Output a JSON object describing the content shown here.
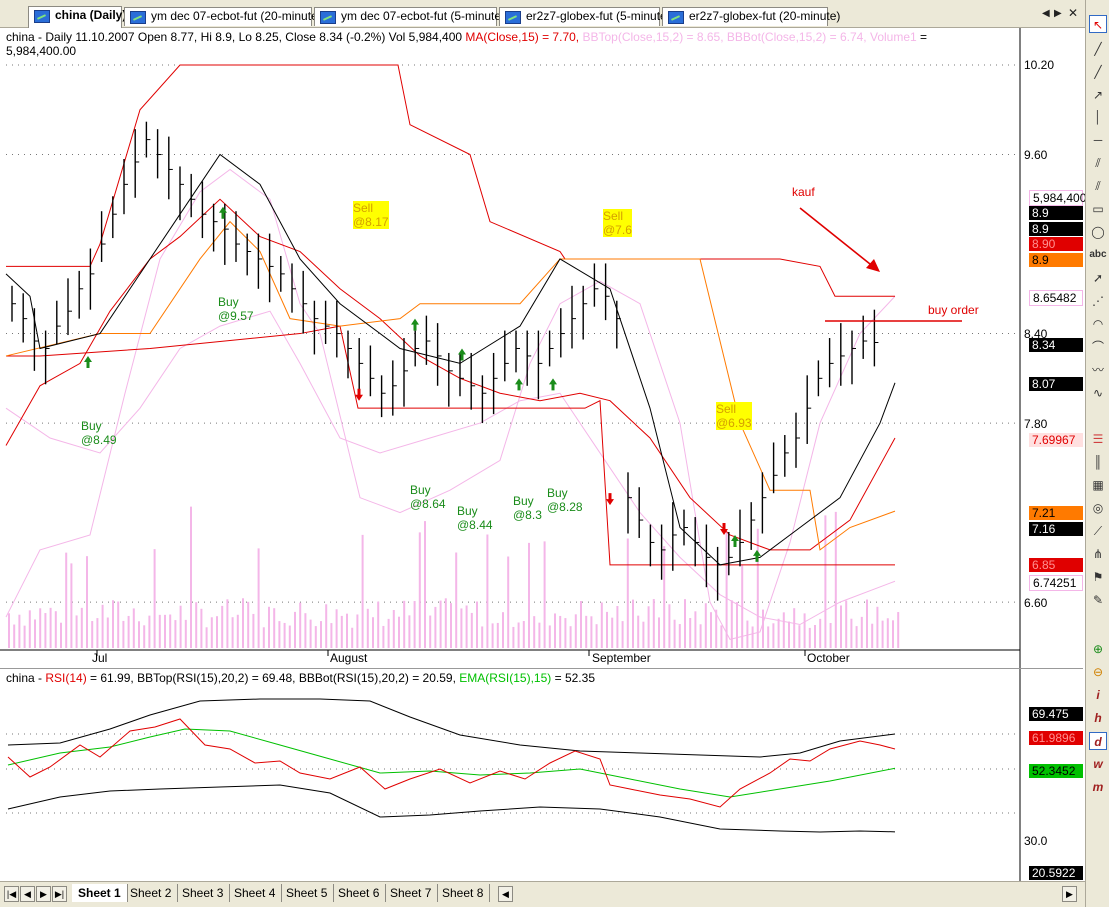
{
  "tabs": [
    {
      "label": "china (Daily)",
      "active": true
    },
    {
      "label": "ym    dec 07-ecbot-fut (20-minute)"
    },
    {
      "label": "ym    dec 07-ecbot-fut (5-minute)"
    },
    {
      "label": "er2z7-globex-fut (5-minute)"
    },
    {
      "label": "er2z7-globex-fut (20-minute)"
    }
  ],
  "price_pane": {
    "header_line1_black": "china - Daily 11.10.2007 Open 8.77, Hi 8.9, Lo 8.25, Close 8.34 (-0.2%) Vol 5,984,400 ",
    "header_ma": "MA(Close,15) = 7.70, ",
    "header_bbtop": "BBTop(Close,15,2) = 8.65, ",
    "header_bbbot": "BBBot(Close,15,2) = 6.74, ",
    "header_vol": "Volume1",
    "header_eq": " =",
    "header_line2": "5,984,400.00",
    "axis_ticks": [
      "10.20",
      "9.60",
      "8.40",
      "7.80",
      "6.60"
    ],
    "price_labels": [
      {
        "text": "5,984,400",
        "bg": "#ffffff",
        "fg": "#000000",
        "border": "#f4b6e8"
      },
      {
        "text": "8.9",
        "bg": "#000000",
        "fg": "#ffffff"
      },
      {
        "text": "8.9",
        "bg": "#000000",
        "fg": "#ffffff"
      },
      {
        "text": "8.90",
        "bg": "#e00000",
        "fg": "#ff9090"
      },
      {
        "text": "8.9",
        "bg": "#ff7a00",
        "fg": "#000000"
      },
      {
        "text": "8.65482",
        "bg": "#ffffff",
        "fg": "#000000",
        "border": "#f4b6e8"
      },
      {
        "text": "8.34",
        "bg": "#000000",
        "fg": "#ffffff"
      },
      {
        "text": "8.07",
        "bg": "#000000",
        "fg": "#ffffff"
      },
      {
        "text": "7.69967",
        "bg": "#ffe0e0",
        "fg": "#e00000"
      },
      {
        "text": "7.21",
        "bg": "#ff7a00",
        "fg": "#000000"
      },
      {
        "text": "7.16",
        "bg": "#000000",
        "fg": "#ffffff"
      },
      {
        "text": "6.85",
        "bg": "#e00000",
        "fg": "#ff9090"
      },
      {
        "text": "6.74251",
        "bg": "#ffffff",
        "fg": "#000000",
        "border": "#f4b6e8"
      }
    ],
    "months": [
      "Jul",
      "August",
      "September",
      "October"
    ],
    "annotations": {
      "kauf": "kauf",
      "buy_order": "buy order"
    },
    "signals": [
      {
        "kind": "buy",
        "l1": "Buy",
        "l2": "@8.49"
      },
      {
        "kind": "buy",
        "l1": "Buy",
        "l2": "@9.57"
      },
      {
        "kind": "sell",
        "l1": "Sell",
        "l2": "@8.17"
      },
      {
        "kind": "buy",
        "l1": "Buy",
        "l2": "@8.64"
      },
      {
        "kind": "buy",
        "l1": "Buy",
        "l2": "@8.44"
      },
      {
        "kind": "buy",
        "l1": "Buy",
        "l2": "@8.3"
      },
      {
        "kind": "buy",
        "l1": "Buy",
        "l2": "@8.28"
      },
      {
        "kind": "sell",
        "l1": "Sell",
        "l2": "@7.6"
      },
      {
        "kind": "sell",
        "l1": "Sell",
        "l2": "@6.93"
      }
    ]
  },
  "rsi_pane": {
    "header_prefix": "china - ",
    "header_rsi": "RSI(14)",
    "header_rest": " = 61.99, BBTop(RSI(15),20,2) = 69.48, BBBot(RSI(15),20,2) = 20.59, ",
    "header_ema": "EMA(RSI(15),15)",
    "header_ema_val": " = 52.35",
    "axis_ticks": [
      "30.0"
    ],
    "labels": [
      {
        "text": "69.475",
        "bg": "#000000",
        "fg": "#ffffff"
      },
      {
        "text": "61.9896",
        "bg": "#e00000",
        "fg": "#ff9090"
      },
      {
        "text": "52.3452",
        "bg": "#00c000",
        "fg": "#000000"
      },
      {
        "text": "20.5922",
        "bg": "#000000",
        "fg": "#ffffff"
      }
    ]
  },
  "sheets": [
    "Sheet 1",
    "Sheet 2",
    "Sheet 3",
    "Sheet 4",
    "Sheet 5",
    "Sheet 6",
    "Sheet 7",
    "Sheet 8"
  ],
  "colors": {
    "ma": "#e00000",
    "bb": "#f4b6e8",
    "rsi": "#e00000",
    "ema": "#00c000",
    "channel_orange": "#ff7a00"
  }
}
